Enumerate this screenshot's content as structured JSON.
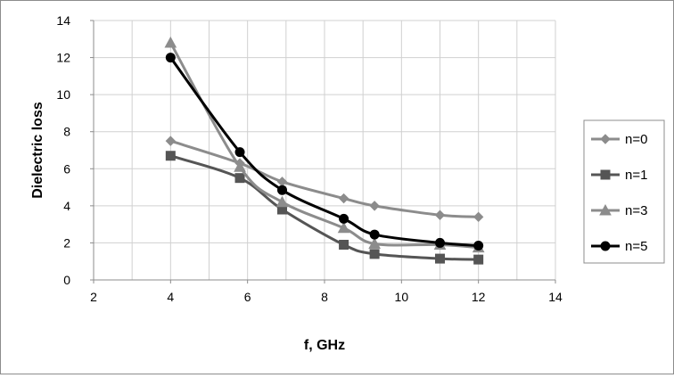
{
  "chart_data": {
    "type": "line",
    "title": "",
    "xlabel": "f, GHz",
    "ylabel": "Dielectric loss",
    "xlim": [
      2,
      14
    ],
    "ylim": [
      0,
      14
    ],
    "x_ticks": [
      "2",
      "4",
      "6",
      "8",
      "10",
      "12",
      "14"
    ],
    "y_ticks": [
      "0",
      "2",
      "4",
      "6",
      "8",
      "10",
      "12",
      "14"
    ],
    "grid": true,
    "legend_position": "right",
    "x": [
      4,
      5.8,
      6.9,
      8.5,
      9.3,
      11,
      12
    ],
    "series": [
      {
        "name": "n=0",
        "color": "#8c8c8c",
        "marker": "diamond",
        "values": [
          7.5,
          6.3,
          5.3,
          4.4,
          4.0,
          3.5,
          3.4
        ]
      },
      {
        "name": "n=1",
        "color": "#555555",
        "marker": "square",
        "values": [
          6.7,
          5.5,
          3.8,
          1.9,
          1.4,
          1.15,
          1.1
        ]
      },
      {
        "name": "n=3",
        "color": "#8c8c8c",
        "marker": "triangle",
        "values": [
          12.8,
          6.1,
          4.2,
          2.8,
          1.95,
          1.9,
          1.75
        ]
      },
      {
        "name": "n=5",
        "color": "#000000",
        "marker": "circle",
        "values": [
          12.0,
          6.9,
          4.85,
          3.3,
          2.45,
          2.0,
          1.85
        ]
      }
    ]
  }
}
